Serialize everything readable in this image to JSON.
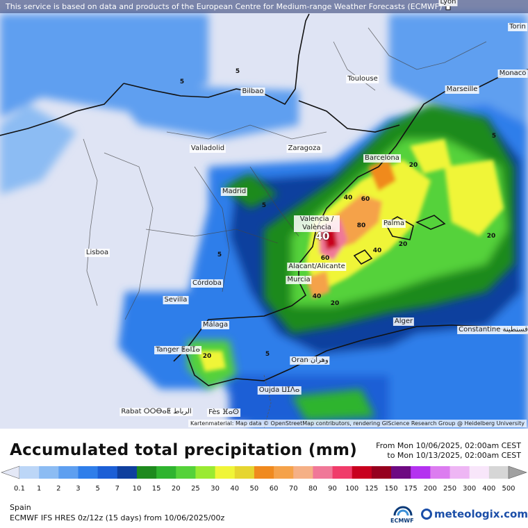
{
  "header": {
    "notice": "This service is based on data and products of the European Centre for Medium-range Weather Forecasts (ECMWF)"
  },
  "map": {
    "credit": "Kartenmaterial: Map data © OpenStreetMap contributors, rendering GIScience Research Group @ Heidelberg University",
    "cities": {
      "lyon": "Lyon",
      "torino": "Torin",
      "monaco": "Monaco",
      "toulouse": "Toulouse",
      "marseille": "Marseille",
      "bilbao": "Bilbao",
      "valladolid": "Valladolid",
      "zaragoza": "Zaragoza",
      "barcelona": "Barcelona",
      "madrid": "Madrid",
      "valencia": "Valencia / València",
      "palma": "Palma",
      "lisboa": "Lisboa",
      "alicante": "Alacant/Alicante",
      "murcia": "Murcia",
      "cordoba": "Córdoba",
      "sevilla": "Sevilla",
      "malaga": "Málaga",
      "alger": "Alger",
      "constantine": "Constantine قسنطينة",
      "tanger": "Tanger ⵟⴰⵏⵊⴰ",
      "oran": "Oran وهران",
      "oujda": "Oujda ⵡⵊⴷⴰ",
      "rabat": "Rabat ⵔⵔⴱⴰⵟ الرباط",
      "fes": "Fès ⴼⴰⵙ"
    },
    "labels": {
      "l5": "5",
      "l20": "20",
      "l40": "40",
      "l60": "60",
      "l80": "80",
      "max": "40"
    }
  },
  "legend": {
    "title": "Accumulated total precipitation (mm)",
    "period_from": "From Mon 10/06/2025, 02:00am CEST",
    "period_to": "to Mon 10/13/2025, 02:00am CEST",
    "ticks": [
      "0.1",
      "1",
      "2",
      "3",
      "5",
      "7",
      "10",
      "15",
      "20",
      "25",
      "30",
      "40",
      "50",
      "60",
      "70",
      "80",
      "90",
      "100",
      "125",
      "150",
      "175",
      "200",
      "250",
      "300",
      "400",
      "500"
    ],
    "colors": [
      "#e4e8f6",
      "#bcd6f7",
      "#8cbcf3",
      "#5e9ff0",
      "#2f7eea",
      "#1c5fd6",
      "#0f3f9e",
      "#1e8a1e",
      "#2fb42f",
      "#55d23a",
      "#9aea32",
      "#f0f538",
      "#e6d530",
      "#f08a1e",
      "#f5a24a",
      "#f5b086",
      "#f07898",
      "#f03c6a",
      "#c8001e",
      "#96001e",
      "#6e0a82",
      "#b432f0",
      "#dc7cf0",
      "#eeb6f4",
      "#f8e6fa",
      "#d6d6d6",
      "#a0a0a0"
    ],
    "region": "Spain",
    "model": "ECMWF IFS HRES 0z/12z (15 days) from 10/06/2025/00z",
    "ecmwf_label": "ECMWF",
    "brand": "meteologix.com"
  }
}
